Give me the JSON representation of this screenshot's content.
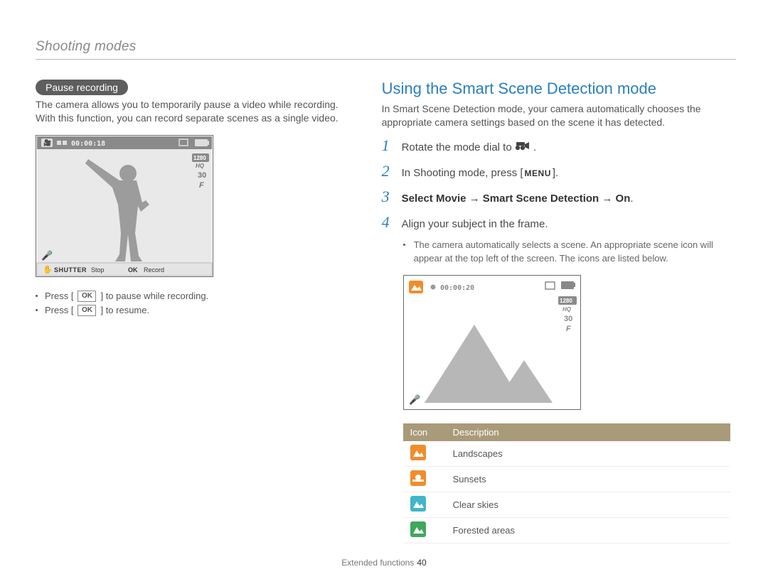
{
  "header": {
    "section": "Shooting modes"
  },
  "left": {
    "pill": "Pause recording",
    "intro": "The camera allows you to temporarily pause a video while recording. With this function, you can record separate scenes as a single video.",
    "screen": {
      "timestamp": "00:00:18",
      "res": "1280",
      "hq": "HQ",
      "fps": "30",
      "f": "F",
      "stop": "Stop",
      "record": "Record",
      "shutter": "SHUTTER",
      "ok": "OK",
      "colors": {
        "bg": "#e9e9e9",
        "topbar": "#8a8a8a",
        "silhouette": "#9c9c9c",
        "bottom": "#e4e4e4",
        "text": "#555555"
      }
    },
    "bullets": [
      {
        "pre": "Press [",
        "btn": "OK",
        "post": "] to pause while recording."
      },
      {
        "pre": "Press [",
        "btn": "OK",
        "post": "] to resume."
      }
    ]
  },
  "right": {
    "title": "Using the Smart Scene Detection mode",
    "intro": "In Smart Scene Detection mode, your camera automatically chooses the appropriate camera settings based on the scene it has detected.",
    "steps": [
      {
        "n": "1",
        "text_pre": "Rotate the mode dial to ",
        "icon": "movie-mode",
        "text_post": "."
      },
      {
        "n": "2",
        "text_pre": "In Shooting mode, press [",
        "btn": "MENU",
        "text_post": "]."
      },
      {
        "n": "3",
        "bold": "Select Movie → Smart Scene Detection → On",
        "text_post": "."
      },
      {
        "n": "4",
        "text_plain": "Align your subject in the frame."
      }
    ],
    "sub_bullet": "The camera automatically selects a scene. An appropriate scene icon will appear at the top left of the screen. The icons are listed below.",
    "screen": {
      "timestamp": "00:00:20",
      "res": "1280",
      "hq": "HQ",
      "fps": "30",
      "f": "F",
      "colors": {
        "bg": "#ffffff",
        "border": "#6a6a6a",
        "mountain": "#b7b7b7",
        "scene_icon_bg": "#f28c2a"
      }
    },
    "table": {
      "headers": [
        "Icon",
        "Description"
      ],
      "rows": [
        {
          "color": "#f28c2a",
          "shape": "mountain",
          "label": "Landscapes"
        },
        {
          "color": "#f28c2a",
          "shape": "sunset",
          "label": "Sunsets"
        },
        {
          "color": "#3fb6c9",
          "shape": "mountain",
          "label": "Clear skies"
        },
        {
          "color": "#3fa85a",
          "shape": "mountain",
          "label": "Forested areas"
        }
      ]
    }
  },
  "footer": {
    "label": "Extended functions",
    "page": "40"
  }
}
